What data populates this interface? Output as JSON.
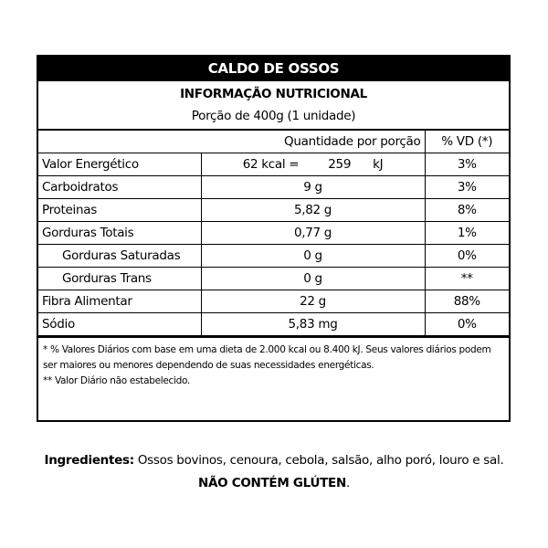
{
  "label": {
    "product_name": "CALDO DE OSSOS",
    "title": "INFORMAÇÃO NUTRICIONAL",
    "portion": "Porção de 400g (1 unidade)",
    "header": {
      "quantity": "Quantidade por porção",
      "dv": "% VD (*)"
    },
    "energy": {
      "name": "Valor Energético",
      "kcal": "62 kcal =",
      "kj_value": "259",
      "kj_unit": "kJ",
      "dv": "3%"
    },
    "rows": [
      {
        "name": "Carboidratos",
        "quantity": "9 g",
        "dv": "3%"
      },
      {
        "name": "Proteinas",
        "quantity": "5,82 g",
        "dv": "8%"
      },
      {
        "name": "Gorduras Totais",
        "quantity": "0,77 g",
        "dv": "1%"
      },
      {
        "name": "Gorduras Saturadas",
        "quantity": "0 g",
        "dv": "0%"
      },
      {
        "name": "Gorduras Trans",
        "quantity": "0 g",
        "dv": "**"
      },
      {
        "name": "Fibra Alimentar",
        "quantity": "22 g",
        "dv": "88%"
      },
      {
        "name": "Sódio",
        "quantity": "5,83 mg",
        "dv": "0%"
      }
    ],
    "footnotes": [
      "* % Valores Diários com base em uma dieta de 2.000 kcal ou 8.400 kJ. Seus valores diários podem ser maiores ou menores dependendo de suas necessidades energéticas.",
      "** Valor Diário não estabelecido."
    ]
  },
  "ingredients": {
    "label": "Ingredientes:",
    "text": " Ossos bovinos, cenoura, cebola, salsão, alho poró, louro e sal. ",
    "gluten": "NÃO CONTÉM GLÚTEN",
    "end": "."
  }
}
